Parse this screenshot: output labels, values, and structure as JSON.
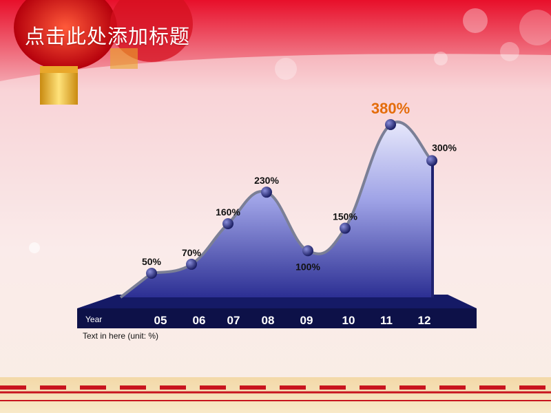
{
  "title": "点击此处添加标题",
  "note": "Text in here  (unit: %)",
  "colors": {
    "banner": "#e8102a",
    "accent": "#e46c0a",
    "marker": "#2a2d78",
    "axis": "#0d1148"
  },
  "chart_data": {
    "type": "area",
    "axis_title": "Year",
    "categories": [
      "05",
      "06",
      "07",
      "08",
      "09",
      "10",
      "11",
      "12"
    ],
    "values": [
      50,
      70,
      160,
      230,
      100,
      150,
      380,
      300
    ],
    "labels": [
      "50%",
      "70%",
      "160%",
      "230%",
      "100%",
      "150%",
      "380%",
      "300%"
    ],
    "highlight": "380%",
    "unit": "%",
    "ylim": [
      0,
      400
    ],
    "grid": false
  }
}
